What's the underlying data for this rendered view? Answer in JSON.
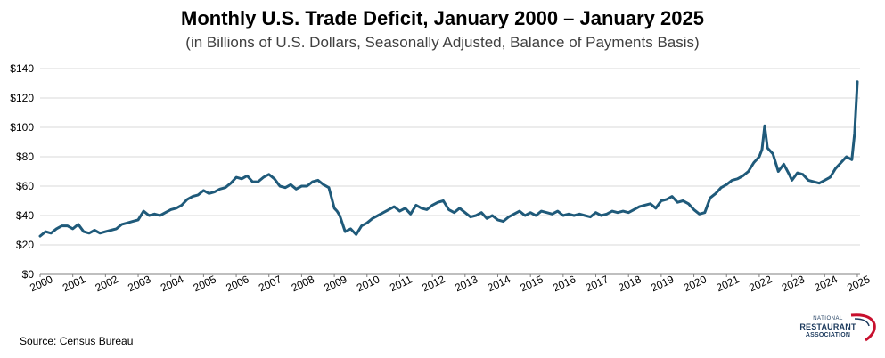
{
  "chart_data": {
    "type": "line",
    "title": "Monthly U.S. Trade Deficit, January 2000 – January 2025",
    "subtitle": "(in Billions of U.S. Dollars, Seasonally Adjusted, Balance of Payments Basis)",
    "xlabel": "",
    "ylabel": "",
    "ylim": [
      0,
      140
    ],
    "yticks": [
      "$0",
      "$20",
      "$40",
      "$60",
      "$80",
      "$100",
      "$120",
      "$140"
    ],
    "xticks": [
      "2000",
      "2001",
      "2002",
      "2003",
      "2004",
      "2005",
      "2006",
      "2007",
      "2008",
      "2009",
      "2010",
      "2011",
      "2012",
      "2013",
      "2014",
      "2015",
      "2016",
      "2017",
      "2018",
      "2019",
      "2020",
      "2021",
      "2022",
      "2023",
      "2024",
      "2025"
    ],
    "grid": "horizontal",
    "color": "#1f5a7a",
    "series": [
      {
        "points": [
          [
            "2000-01",
            26
          ],
          [
            "2000-03",
            29
          ],
          [
            "2000-05",
            28
          ],
          [
            "2000-07",
            31
          ],
          [
            "2000-09",
            33
          ],
          [
            "2000-11",
            33
          ],
          [
            "2001-01",
            31
          ],
          [
            "2001-03",
            34
          ],
          [
            "2001-05",
            29
          ],
          [
            "2001-07",
            28
          ],
          [
            "2001-09",
            30
          ],
          [
            "2001-11",
            28
          ],
          [
            "2002-01",
            29
          ],
          [
            "2002-03",
            30
          ],
          [
            "2002-05",
            31
          ],
          [
            "2002-07",
            34
          ],
          [
            "2002-09",
            35
          ],
          [
            "2002-11",
            36
          ],
          [
            "2003-01",
            37
          ],
          [
            "2003-03",
            43
          ],
          [
            "2003-05",
            40
          ],
          [
            "2003-07",
            41
          ],
          [
            "2003-09",
            40
          ],
          [
            "2003-11",
            42
          ],
          [
            "2004-01",
            44
          ],
          [
            "2004-03",
            45
          ],
          [
            "2004-05",
            47
          ],
          [
            "2004-07",
            51
          ],
          [
            "2004-09",
            53
          ],
          [
            "2004-11",
            54
          ],
          [
            "2005-01",
            57
          ],
          [
            "2005-03",
            55
          ],
          [
            "2005-05",
            56
          ],
          [
            "2005-07",
            58
          ],
          [
            "2005-09",
            59
          ],
          [
            "2005-11",
            62
          ],
          [
            "2006-01",
            66
          ],
          [
            "2006-03",
            65
          ],
          [
            "2006-05",
            67
          ],
          [
            "2006-07",
            63
          ],
          [
            "2006-09",
            63
          ],
          [
            "2006-11",
            66
          ],
          [
            "2007-01",
            68
          ],
          [
            "2007-03",
            65
          ],
          [
            "2007-05",
            60
          ],
          [
            "2007-07",
            59
          ],
          [
            "2007-09",
            61
          ],
          [
            "2007-11",
            58
          ],
          [
            "2008-01",
            60
          ],
          [
            "2008-03",
            60
          ],
          [
            "2008-05",
            63
          ],
          [
            "2008-07",
            64
          ],
          [
            "2008-09",
            61
          ],
          [
            "2008-11",
            59
          ],
          [
            "2009-01",
            45
          ],
          [
            "2009-02",
            43
          ],
          [
            "2009-03",
            40
          ],
          [
            "2009-05",
            29
          ],
          [
            "2009-07",
            31
          ],
          [
            "2009-09",
            27
          ],
          [
            "2009-11",
            33
          ],
          [
            "2010-01",
            35
          ],
          [
            "2010-03",
            38
          ],
          [
            "2010-05",
            40
          ],
          [
            "2010-07",
            42
          ],
          [
            "2010-09",
            44
          ],
          [
            "2010-11",
            46
          ],
          [
            "2011-01",
            43
          ],
          [
            "2011-03",
            45
          ],
          [
            "2011-05",
            41
          ],
          [
            "2011-07",
            47
          ],
          [
            "2011-09",
            45
          ],
          [
            "2011-11",
            44
          ],
          [
            "2012-01",
            47
          ],
          [
            "2012-03",
            49
          ],
          [
            "2012-05",
            50
          ],
          [
            "2012-07",
            44
          ],
          [
            "2012-09",
            42
          ],
          [
            "2012-11",
            45
          ],
          [
            "2013-01",
            42
          ],
          [
            "2013-03",
            39
          ],
          [
            "2013-05",
            40
          ],
          [
            "2013-07",
            42
          ],
          [
            "2013-09",
            38
          ],
          [
            "2013-11",
            40
          ],
          [
            "2014-01",
            37
          ],
          [
            "2014-03",
            36
          ],
          [
            "2014-05",
            39
          ],
          [
            "2014-07",
            41
          ],
          [
            "2014-09",
            43
          ],
          [
            "2014-11",
            40
          ],
          [
            "2015-01",
            42
          ],
          [
            "2015-03",
            40
          ],
          [
            "2015-05",
            43
          ],
          [
            "2015-07",
            42
          ],
          [
            "2015-09",
            41
          ],
          [
            "2015-11",
            43
          ],
          [
            "2016-01",
            40
          ],
          [
            "2016-03",
            41
          ],
          [
            "2016-05",
            40
          ],
          [
            "2016-07",
            41
          ],
          [
            "2016-09",
            40
          ],
          [
            "2016-11",
            39
          ],
          [
            "2017-01",
            42
          ],
          [
            "2017-03",
            40
          ],
          [
            "2017-05",
            41
          ],
          [
            "2017-07",
            43
          ],
          [
            "2017-09",
            42
          ],
          [
            "2017-11",
            43
          ],
          [
            "2018-01",
            42
          ],
          [
            "2018-03",
            44
          ],
          [
            "2018-05",
            46
          ],
          [
            "2018-07",
            47
          ],
          [
            "2018-09",
            48
          ],
          [
            "2018-11",
            45
          ],
          [
            "2019-01",
            50
          ],
          [
            "2019-03",
            51
          ],
          [
            "2019-05",
            53
          ],
          [
            "2019-07",
            49
          ],
          [
            "2019-09",
            50
          ],
          [
            "2019-11",
            48
          ],
          [
            "2020-01",
            44
          ],
          [
            "2020-03",
            41
          ],
          [
            "2020-05",
            42
          ],
          [
            "2020-07",
            52
          ],
          [
            "2020-09",
            55
          ],
          [
            "2020-11",
            59
          ],
          [
            "2021-01",
            61
          ],
          [
            "2021-03",
            64
          ],
          [
            "2021-05",
            65
          ],
          [
            "2021-07",
            67
          ],
          [
            "2021-09",
            70
          ],
          [
            "2021-11",
            76
          ],
          [
            "2022-01",
            80
          ],
          [
            "2022-02",
            85
          ],
          [
            "2022-03",
            101
          ],
          [
            "2022-04",
            86
          ],
          [
            "2022-06",
            82
          ],
          [
            "2022-08",
            70
          ],
          [
            "2022-10",
            75
          ],
          [
            "2022-12",
            68
          ],
          [
            "2023-01",
            64
          ],
          [
            "2023-03",
            69
          ],
          [
            "2023-05",
            68
          ],
          [
            "2023-07",
            64
          ],
          [
            "2023-09",
            63
          ],
          [
            "2023-11",
            62
          ],
          [
            "2024-01",
            64
          ],
          [
            "2024-03",
            66
          ],
          [
            "2024-05",
            72
          ],
          [
            "2024-07",
            76
          ],
          [
            "2024-09",
            80
          ],
          [
            "2024-11",
            78
          ],
          [
            "2024-12",
            96
          ],
          [
            "2025-01",
            131
          ]
        ]
      }
    ]
  },
  "source": "Source: Census Bureau",
  "logo": {
    "line1": "NATIONAL",
    "line2": "RESTAURANT",
    "line3": "ASSOCIATION"
  }
}
